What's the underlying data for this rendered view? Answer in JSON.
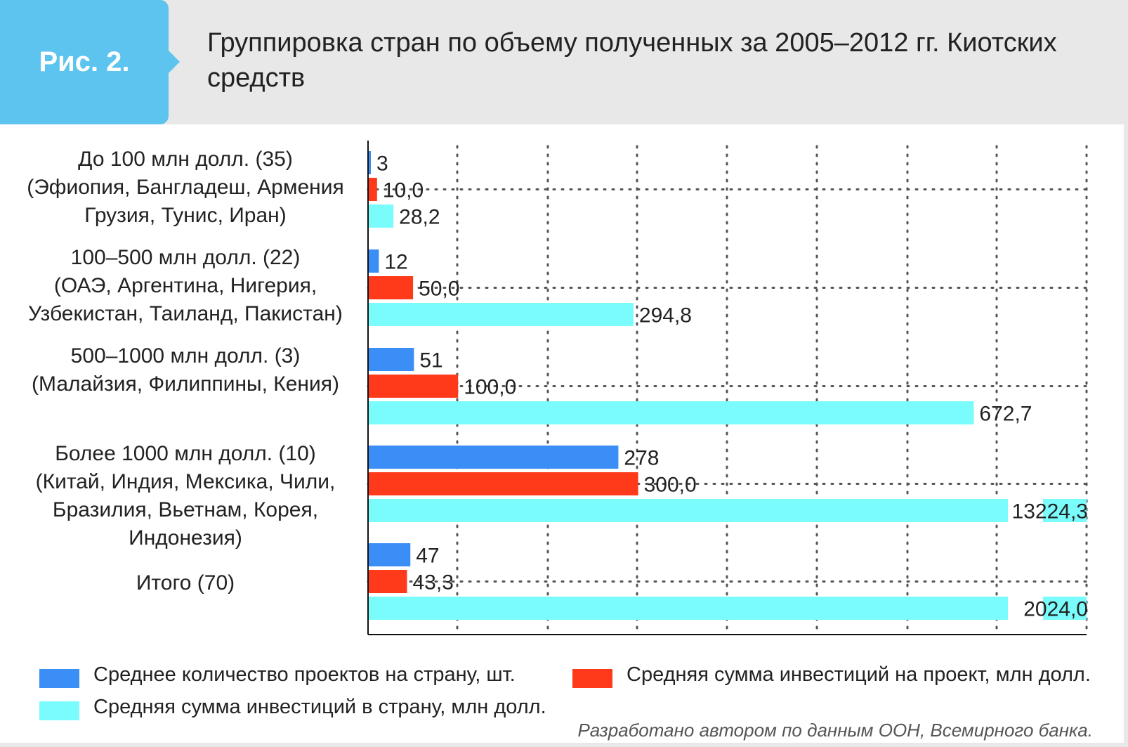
{
  "figure": {
    "badge": "Рис. 2.",
    "title": "Группировка стран по объему полученных за 2005–2012 гг. Киотских средств"
  },
  "chart_data": {
    "type": "bar",
    "orientation": "horizontal",
    "categories": [
      [
        "До 100 млн долл. (35)",
        "(Эфиопия, Бангладеш, Армения",
        "Грузия, Тунис, Иран)"
      ],
      [
        "100–500 млн долл. (22)",
        "(ОАЭ, Аргентина, Нигерия,",
        "Узбекистан, Таиланд, Пакистан)"
      ],
      [
        "500–1000 млн долл. (3)",
        "(Малайзия, Филиппины, Кения)"
      ],
      [
        "Более 1000 млн долл. (10)",
        "(Китай, Индия, Мексика, Чили,",
        "Бразилия, Вьетнам, Корея,",
        "Индонезия)"
      ],
      [
        "Итого (70)"
      ]
    ],
    "series": [
      {
        "name": "Среднее количество проектов на страну, шт.",
        "color": "#3a8ef5",
        "values": [
          3,
          12,
          51,
          278,
          47
        ],
        "labels": [
          "3",
          "12",
          "51",
          "278",
          "47"
        ]
      },
      {
        "name": "Средняя сумма инвестиций на проект, млн долл.",
        "color": "#ff3a1a",
        "values": [
          10.0,
          50.0,
          100.0,
          300.0,
          43.3
        ],
        "labels": [
          "10,0",
          "50,0",
          "100,0",
          "300,0",
          "43,3"
        ]
      },
      {
        "name": "Средняя сумма инвестиций в страну, млн долл.",
        "color": "#7afcfc",
        "values": [
          28.2,
          294.8,
          672.7,
          13224.3,
          2024.0
        ],
        "labels": [
          "28,2",
          "294,8",
          "672,7",
          "13224,3",
          "2024,0"
        ]
      }
    ],
    "axis_break": true,
    "xlim": [
      0,
      800
    ],
    "grid": true,
    "legend_position": "bottom"
  },
  "source": "Разработано автором по данным ООН, Всемирного банка."
}
